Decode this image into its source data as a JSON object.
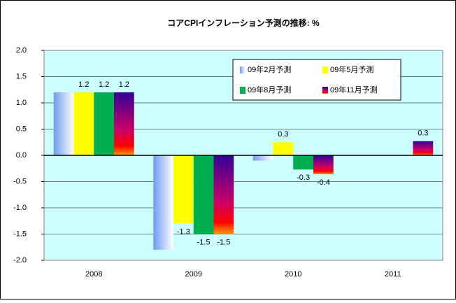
{
  "chart_data": {
    "type": "bar",
    "title": "コアCPIインフレーション予測の推移: %",
    "categories": [
      "2008",
      "2009",
      "2010",
      "2011"
    ],
    "series": [
      {
        "name": "09年2月予測",
        "color": "#6f9cf0",
        "values": [
          1.2,
          -1.8,
          -0.1,
          null
        ]
      },
      {
        "name": "09年5月予測",
        "color": "#ffff00",
        "values": [
          1.2,
          -1.3,
          0.25,
          null
        ],
        "value_labels": [
          "1.2",
          "-1.3",
          "0.3",
          null
        ]
      },
      {
        "name": "09年8月予測",
        "color": "#00b050",
        "values": [
          1.2,
          -1.5,
          -0.27,
          null
        ],
        "value_labels": [
          "1.2",
          "-1.5",
          "-0.3",
          null
        ]
      },
      {
        "name": "09年11月予測",
        "color": "#330099",
        "values": [
          1.2,
          -1.5,
          -0.36,
          0.27
        ],
        "value_labels": [
          "1.2",
          "-1.5",
          "-0.4",
          "0.3"
        ]
      }
    ],
    "ylim": [
      -2,
      2
    ],
    "yticks": [
      {
        "value": 2,
        "label": "2.0"
      },
      1.5,
      {
        "value": 1,
        "label": "1.0"
      },
      0.5,
      {
        "value": 0,
        "label": "0.0"
      },
      -0.5,
      {
        "value": -1,
        "label": "-1.0"
      },
      -1.5,
      {
        "value": -2,
        "label": "-2.0"
      }
    ],
    "grid": true,
    "legend": "upper right"
  }
}
